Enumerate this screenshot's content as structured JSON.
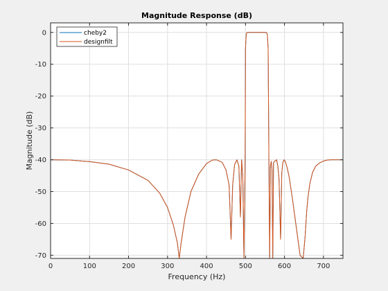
{
  "chart_data": {
    "type": "line",
    "title": "Magnitude Response (dB)",
    "xlabel": "Frequency (Hz)",
    "ylabel": "Magnitude (dB)",
    "xlim": [
      0,
      750
    ],
    "ylim": [
      -71,
      3
    ],
    "xticks": [
      0,
      100,
      200,
      300,
      400,
      500,
      600,
      700
    ],
    "yticks": [
      0,
      -10,
      -20,
      -30,
      -40,
      -50,
      -60,
      -70
    ],
    "grid": true,
    "legend_position": "top-left",
    "series": [
      {
        "name": "cheby2",
        "color": "#0072bd",
        "x": [
          0,
          50,
          100,
          150,
          200,
          250,
          280,
          300,
          315,
          325,
          330,
          335,
          345,
          360,
          380,
          400,
          415,
          425,
          440,
          450,
          458,
          463,
          467,
          472,
          478,
          483,
          487,
          490,
          493,
          496,
          499,
          500,
          502,
          505,
          510,
          520,
          530,
          540,
          550,
          553,
          556,
          558,
          560,
          562,
          564,
          566,
          568,
          570,
          572,
          574,
          577,
          580,
          583,
          586,
          590,
          593,
          596,
          599,
          602,
          607,
          612,
          620,
          630,
          640,
          648,
          653,
          657,
          660,
          665,
          672,
          680,
          690,
          700,
          710,
          720,
          730,
          740,
          750
        ],
        "y": [
          -40,
          -40.1,
          -40.6,
          -41.4,
          -43.2,
          -46.5,
          -50.5,
          -55,
          -60.5,
          -66,
          -71,
          -66,
          -58,
          -50,
          -44.5,
          -41.2,
          -40.1,
          -40,
          -40.8,
          -43.2,
          -48,
          -65,
          -48,
          -41.5,
          -40,
          -42,
          -58,
          -40,
          -45,
          -71,
          -40,
          -5,
          -0.3,
          0,
          0,
          0,
          0,
          0,
          0,
          0,
          -0.5,
          -5,
          -40,
          -71,
          -42,
          -40.5,
          -43,
          -71,
          -41,
          -40.5,
          -40.3,
          -40,
          -42,
          -46,
          -65,
          -44,
          -40.8,
          -40,
          -40.5,
          -42.5,
          -45.5,
          -52,
          -61,
          -70,
          -71,
          -64,
          -56,
          -52,
          -47.5,
          -44,
          -42,
          -41,
          -40.4,
          -40.1,
          -40,
          -40,
          -40,
          -40
        ]
      },
      {
        "name": "designfilt",
        "color": "#d95319",
        "x": [
          0,
          50,
          100,
          150,
          200,
          250,
          280,
          300,
          315,
          325,
          330,
          335,
          345,
          360,
          380,
          400,
          415,
          425,
          440,
          450,
          458,
          463,
          467,
          472,
          478,
          483,
          487,
          490,
          493,
          496,
          499,
          500,
          502,
          505,
          510,
          520,
          530,
          540,
          550,
          553,
          556,
          558,
          560,
          562,
          564,
          566,
          568,
          570,
          572,
          574,
          577,
          580,
          583,
          586,
          590,
          593,
          596,
          599,
          602,
          607,
          612,
          620,
          630,
          640,
          648,
          653,
          657,
          660,
          665,
          672,
          680,
          690,
          700,
          710,
          720,
          730,
          740,
          750
        ],
        "y": [
          -40,
          -40.1,
          -40.6,
          -41.4,
          -43.2,
          -46.5,
          -50.5,
          -55,
          -60.5,
          -66,
          -71,
          -66,
          -58,
          -50,
          -44.5,
          -41.2,
          -40.1,
          -40,
          -40.8,
          -43.2,
          -48,
          -65,
          -48,
          -41.5,
          -40,
          -42,
          -58,
          -40,
          -45,
          -71,
          -40,
          -5,
          -0.3,
          0,
          0,
          0,
          0,
          0,
          0,
          0,
          -0.5,
          -5,
          -40,
          -71,
          -42,
          -40.5,
          -43,
          -71,
          -41,
          -40.5,
          -40.3,
          -40,
          -42,
          -46,
          -65,
          -44,
          -40.8,
          -40,
          -40.5,
          -42.5,
          -45.5,
          -52,
          -61,
          -70,
          -71,
          -64,
          -56,
          -52,
          -47.5,
          -44,
          -42,
          -41,
          -40.4,
          -40.1,
          -40,
          -40,
          -40,
          -40
        ]
      }
    ]
  }
}
